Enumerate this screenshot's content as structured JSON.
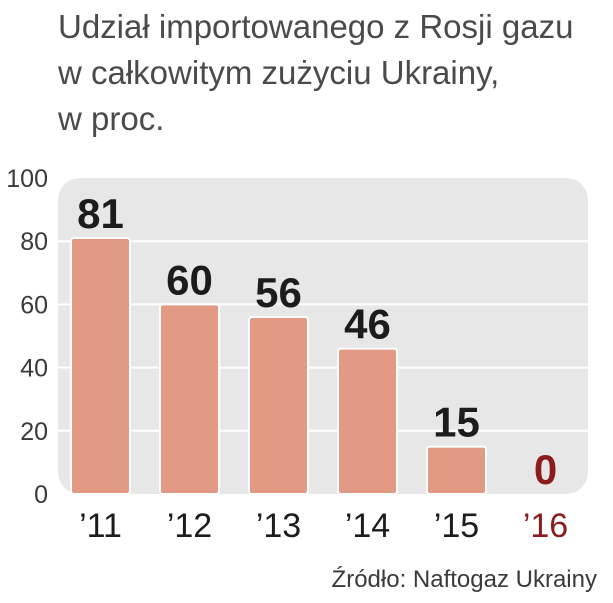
{
  "title_lines": [
    "Udział importowanego z Rosji gazu",
    "w całkowitym zużyciu Ukrainy,",
    "w proc."
  ],
  "source": "Źródło: Naftogaz Ukrainy",
  "colors": {
    "panel": "#e7e7e7",
    "bar": "#e39a84",
    "bar_stroke": "#ffffff",
    "grid": "#ffffff",
    "label": "#1c1c1c",
    "highlight": "#8c1c1c",
    "axis_text": "#3a3a3a"
  },
  "chart_data": {
    "type": "bar",
    "categories": [
      "’11",
      "’12",
      "’13",
      "’14",
      "’15",
      "’16"
    ],
    "values": [
      81,
      60,
      56,
      46,
      15,
      0
    ],
    "value_labels": [
      "81",
      "60",
      "56",
      "46",
      "15",
      "0"
    ],
    "highlight_index": 5,
    "yticks": [
      0,
      20,
      40,
      60,
      80,
      100
    ],
    "ylim": [
      0,
      100
    ],
    "grid": true
  }
}
